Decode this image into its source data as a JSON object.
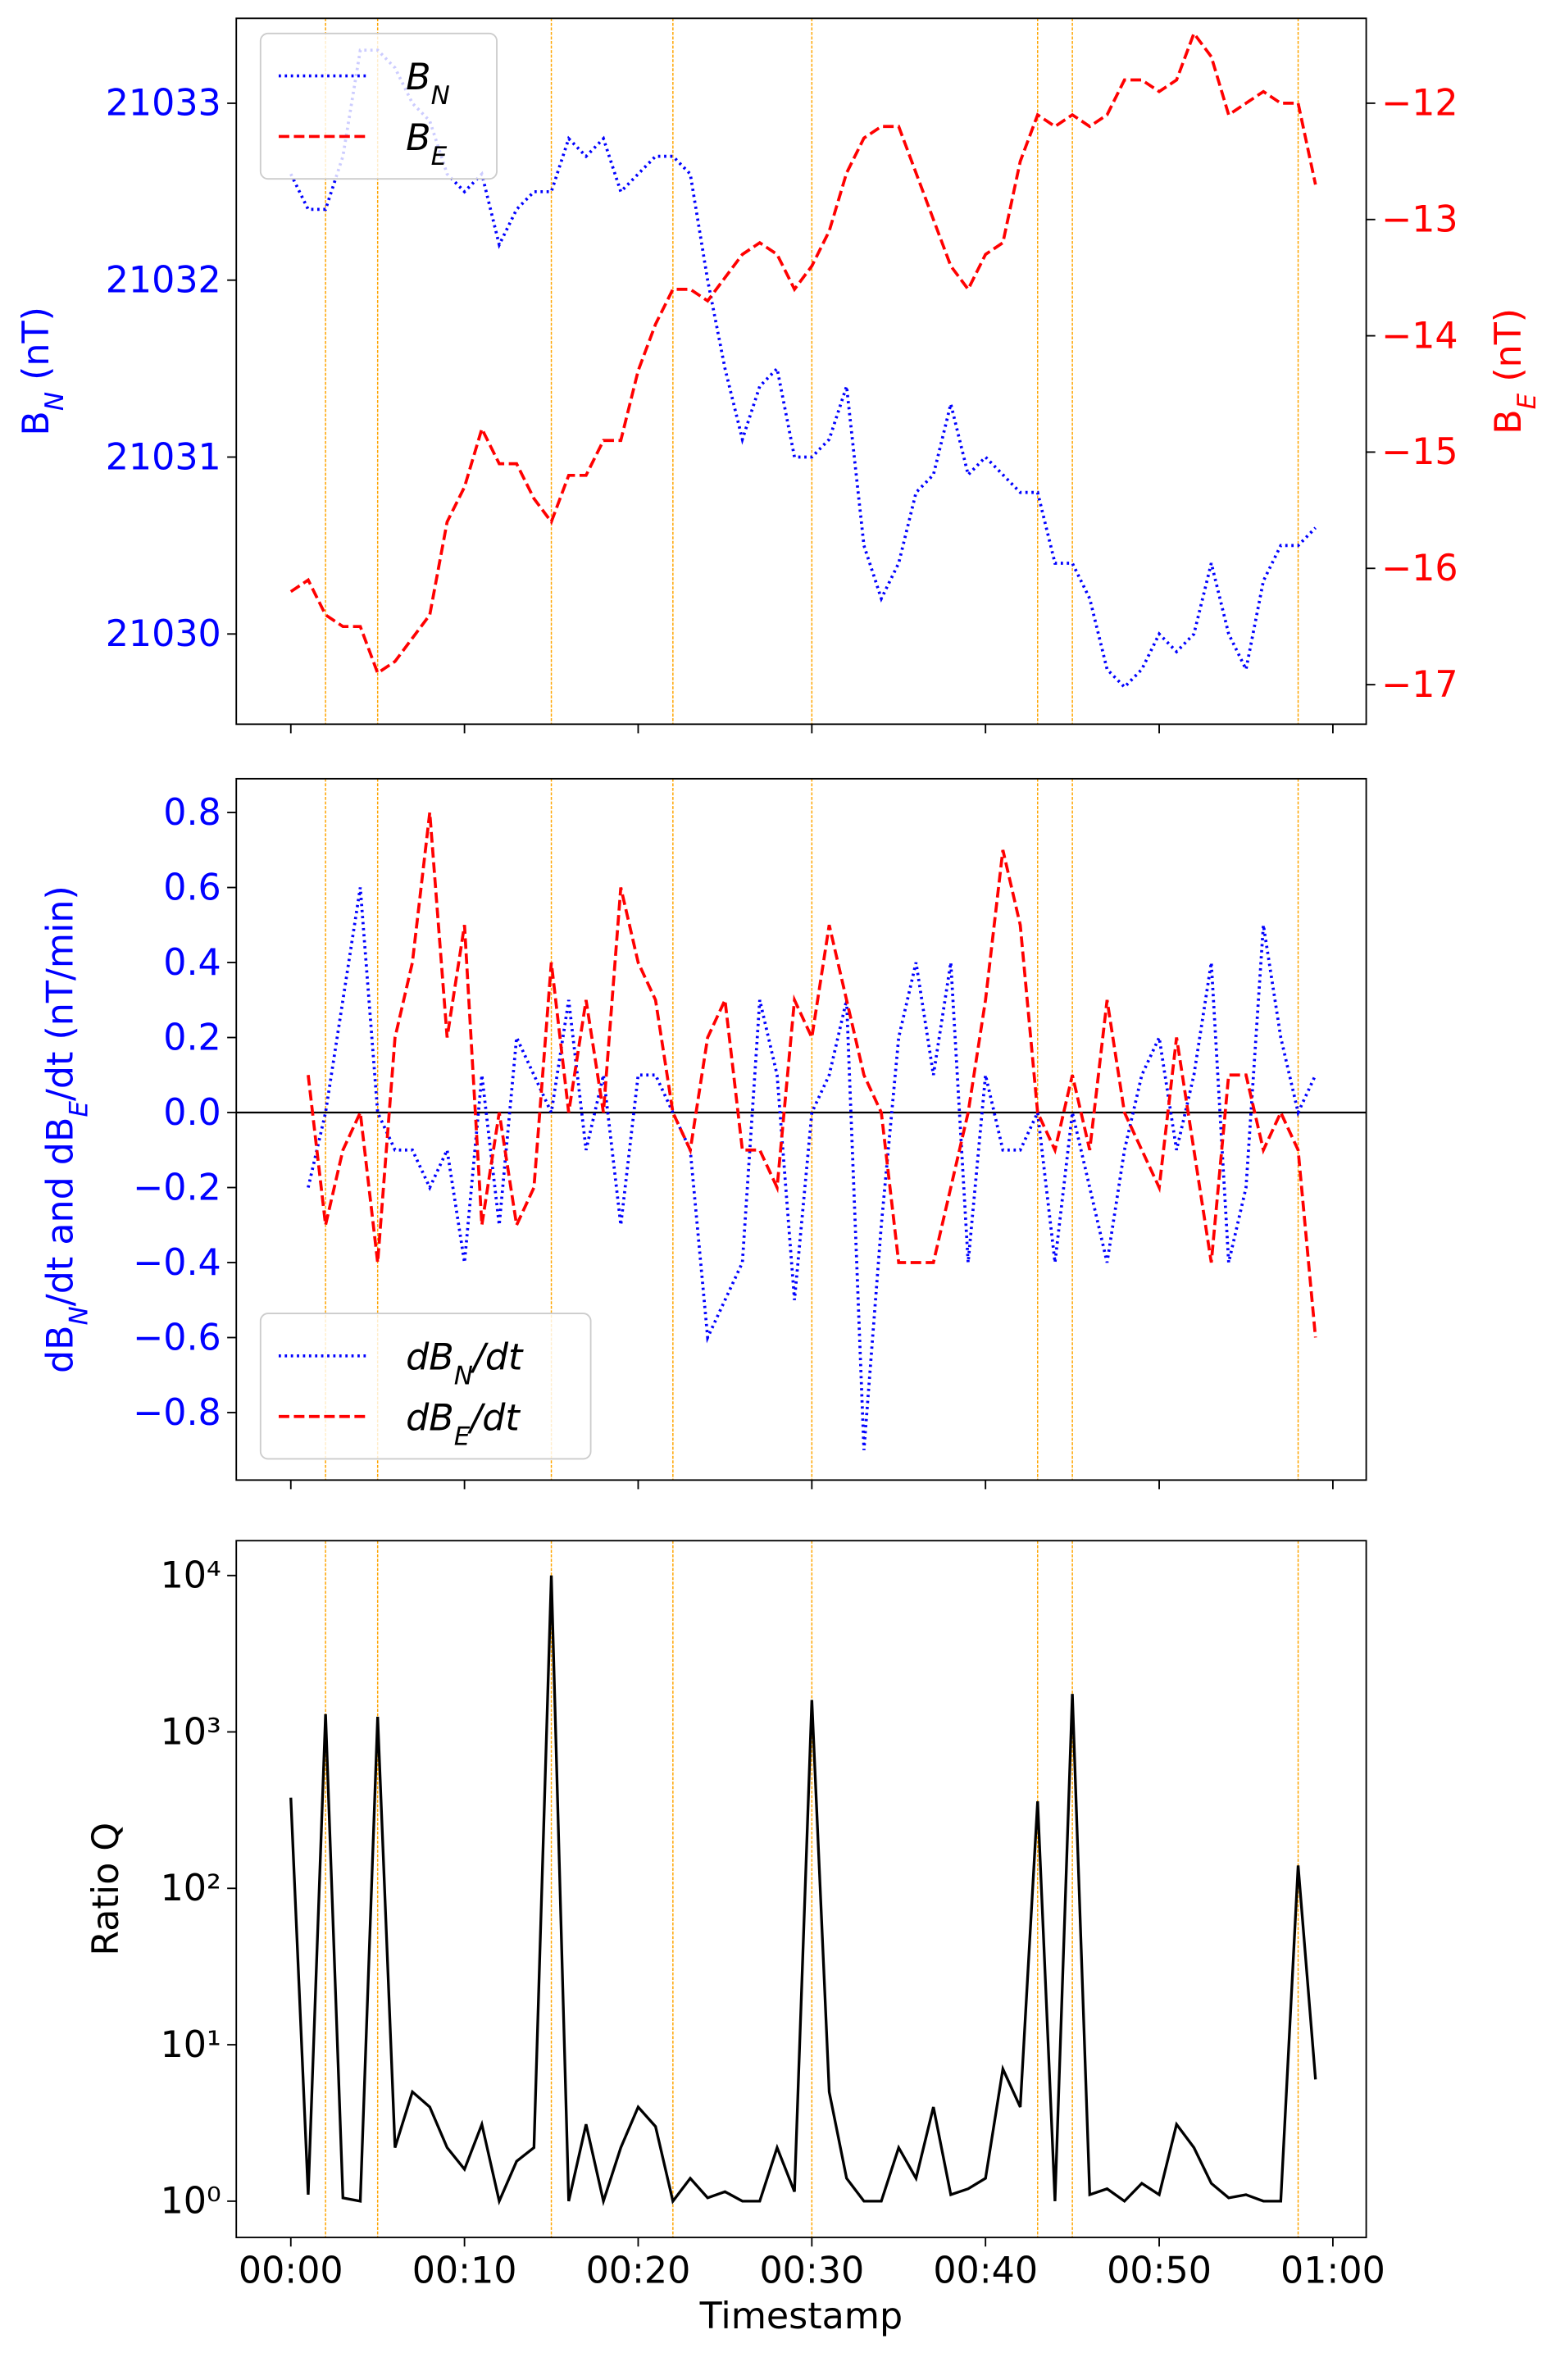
{
  "chart_data": [
    {
      "type": "line",
      "ylabel": "B_N (nT)",
      "y2label": "B_E (nT)",
      "x": [
        0,
        1,
        2,
        3,
        4,
        5,
        6,
        7,
        8,
        9,
        10,
        11,
        12,
        13,
        14,
        15,
        16,
        17,
        18,
        19,
        20,
        21,
        22,
        23,
        24,
        25,
        26,
        27,
        28,
        29,
        30,
        31,
        32,
        33,
        34,
        35,
        36,
        37,
        38,
        39,
        40,
        41,
        42,
        43,
        44,
        45,
        46,
        47,
        48,
        49,
        50,
        51,
        52,
        53,
        54,
        55,
        56,
        57,
        58,
        59
      ],
      "xlim": [
        -3.14,
        61.92
      ],
      "xticks": [
        0,
        10,
        20,
        30,
        40,
        50,
        60
      ],
      "ylim": [
        21029.49,
        21033.48
      ],
      "yticks": [
        21030,
        21031,
        21032,
        21033
      ],
      "ycolor": "blue",
      "y2lim": [
        -17.34,
        -11.27
      ],
      "y2ticks": [
        {
          "value": -17,
          "label": "−17"
        },
        {
          "value": -16,
          "label": "−16"
        },
        {
          "value": -15,
          "label": "−15"
        },
        {
          "value": -14,
          "label": "−14"
        },
        {
          "value": -13,
          "label": "−13"
        },
        {
          "value": -12,
          "label": "−12"
        }
      ],
      "y2color": "red",
      "vlines": [
        2,
        5,
        15,
        22,
        30,
        43,
        45,
        58
      ],
      "vline_color": "#ffa500",
      "legend": "upper left",
      "series": [
        {
          "name": "B_N",
          "color": "blue",
          "linestyle": "dotted",
          "axis": "y",
          "values": [
            21032.6,
            21032.4,
            21032.4,
            21032.7,
            21033.3,
            21033.3,
            21033.2,
            21033.0,
            21032.9,
            21032.6,
            21032.5,
            21032.6,
            21032.2,
            21032.4,
            21032.5,
            21032.5,
            21032.8,
            21032.7,
            21032.8,
            21032.5,
            21032.6,
            21032.7,
            21032.7,
            21032.6,
            21032.0,
            21031.5,
            21031.1,
            21031.4,
            21031.5,
            21031.0,
            21031.0,
            21031.1,
            21031.4,
            21030.5,
            21030.2,
            21030.4,
            21030.8,
            21030.9,
            21031.3,
            21030.9,
            21031.0,
            21030.9,
            21030.8,
            21030.8,
            21030.4,
            21030.4,
            21030.2,
            21029.8,
            21029.7,
            21029.8,
            21030.0,
            21029.9,
            21030.0,
            21030.4,
            21030.0,
            21029.8,
            21030.3,
            21030.5,
            21030.5,
            21030.6
          ]
        },
        {
          "name": "B_E",
          "color": "red",
          "linestyle": "dashed",
          "axis": "y2",
          "values": [
            -16.2,
            -16.1,
            -16.4,
            -16.5,
            -16.5,
            -16.9,
            -16.8,
            -16.6,
            -16.4,
            -15.6,
            -15.3,
            -14.8,
            -15.1,
            -15.1,
            -15.4,
            -15.6,
            -15.2,
            -15.2,
            -14.9,
            -14.9,
            -14.3,
            -13.9,
            -13.6,
            -13.6,
            -13.7,
            -13.5,
            -13.3,
            -13.2,
            -13.3,
            -13.6,
            -13.4,
            -13.1,
            -12.6,
            -12.3,
            -12.2,
            -12.2,
            -12.6,
            -13.0,
            -13.4,
            -13.6,
            -13.3,
            -13.2,
            -12.5,
            -12.1,
            -12.2,
            -12.1,
            -12.2,
            -12.1,
            -11.8,
            -11.8,
            -11.9,
            -11.8,
            -11.4,
            -11.6,
            -12.1,
            -12.0,
            -11.9,
            -12.0,
            -12.0,
            -12.7
          ]
        }
      ]
    },
    {
      "type": "line",
      "ylabel": "dB_N/dt and dB_E/dt (nT/min)",
      "x": [
        0,
        1,
        2,
        3,
        4,
        5,
        6,
        7,
        8,
        9,
        10,
        11,
        12,
        13,
        14,
        15,
        16,
        17,
        18,
        19,
        20,
        21,
        22,
        23,
        24,
        25,
        26,
        27,
        28,
        29,
        30,
        31,
        32,
        33,
        34,
        35,
        36,
        37,
        38,
        39,
        40,
        41,
        42,
        43,
        44,
        45,
        46,
        47,
        48,
        49,
        50,
        51,
        52,
        53,
        54,
        55,
        56,
        57,
        58,
        59
      ],
      "xlim": [
        -3.14,
        61.92
      ],
      "xticks": [
        0,
        10,
        20,
        30,
        40,
        50,
        60
      ],
      "ylim": [
        -0.98,
        0.89
      ],
      "yticks": [
        {
          "value": -0.8,
          "label": "−0.8"
        },
        {
          "value": -0.6,
          "label": "−0.6"
        },
        {
          "value": -0.4,
          "label": "−0.4"
        },
        {
          "value": -0.2,
          "label": "−0.2"
        },
        {
          "value": 0,
          "label": "0.0"
        },
        {
          "value": 0.2,
          "label": "0.2"
        },
        {
          "value": 0.4,
          "label": "0.4"
        },
        {
          "value": 0.6,
          "label": "0.6"
        },
        {
          "value": 0.8,
          "label": "0.8"
        }
      ],
      "ycolor": "blue",
      "hline": 0,
      "vlines": [
        2,
        5,
        15,
        22,
        30,
        43,
        45,
        58
      ],
      "vline_color": "#ffa500",
      "legend": "lower left",
      "series": [
        {
          "name": "dB_N/dt",
          "color": "blue",
          "linestyle": "dotted",
          "values": [
            null,
            -0.2,
            0.0,
            0.3,
            0.6,
            0.0,
            -0.1,
            -0.1,
            -0.2,
            -0.1,
            -0.4,
            0.1,
            -0.3,
            0.2,
            0.1,
            0.0,
            0.3,
            -0.1,
            0.1,
            -0.3,
            0.1,
            0.1,
            0.0,
            -0.1,
            -0.6,
            -0.5,
            -0.4,
            0.3,
            0.1,
            -0.5,
            0.0,
            0.1,
            0.3,
            -0.9,
            -0.3,
            0.2,
            0.4,
            0.1,
            0.4,
            -0.4,
            0.1,
            -0.1,
            -0.1,
            0.0,
            -0.4,
            0.0,
            -0.2,
            -0.4,
            -0.1,
            0.1,
            0.2,
            -0.1,
            0.1,
            0.4,
            -0.4,
            -0.2,
            0.5,
            0.2,
            0.0,
            0.1
          ]
        },
        {
          "name": "dB_E/dt",
          "color": "red",
          "linestyle": "dashed",
          "values": [
            null,
            0.1,
            -0.3,
            -0.1,
            0.0,
            -0.4,
            0.2,
            0.4,
            0.8,
            0.2,
            0.5,
            -0.3,
            0.0,
            -0.3,
            -0.2,
            0.4,
            0.0,
            0.3,
            0.0,
            0.6,
            0.4,
            0.3,
            0.0,
            -0.1,
            0.2,
            0.3,
            -0.1,
            -0.1,
            -0.2,
            0.3,
            0.2,
            0.5,
            0.3,
            0.1,
            0.0,
            -0.4,
            -0.4,
            -0.4,
            -0.2,
            0.0,
            0.3,
            0.7,
            0.5,
            0.0,
            -0.1,
            0.1,
            -0.1,
            0.3,
            0.0,
            -0.1,
            -0.2,
            0.2,
            -0.1,
            -0.4,
            0.1,
            0.1,
            -0.1,
            0.0,
            -0.1,
            -0.6
          ]
        }
      ]
    },
    {
      "type": "line",
      "ylabel": "Ratio Q",
      "xlabel": "Timestamp",
      "log_scale": true,
      "x": [
        0,
        1,
        2,
        3,
        4,
        5,
        6,
        7,
        8,
        9,
        10,
        11,
        12,
        13,
        14,
        15,
        16,
        17,
        18,
        19,
        20,
        21,
        22,
        23,
        24,
        25,
        26,
        27,
        28,
        29,
        30,
        31,
        32,
        33,
        34,
        35,
        36,
        37,
        38,
        39,
        40,
        41,
        42,
        43,
        44,
        45,
        46,
        47,
        48,
        49,
        50,
        51,
        52,
        53,
        54,
        55,
        56,
        57,
        58,
        59
      ],
      "xlim": [
        -3.14,
        61.92
      ],
      "xticks": [
        {
          "value": 0,
          "label": "00:00"
        },
        {
          "value": 10,
          "label": "00:10"
        },
        {
          "value": 20,
          "label": "00:20"
        },
        {
          "value": 30,
          "label": "00:30"
        },
        {
          "value": 40,
          "label": "00:40"
        },
        {
          "value": 50,
          "label": "00:50"
        },
        {
          "value": 60,
          "label": "01:00"
        }
      ],
      "ylim": [
        0.586,
        16700
      ],
      "yticks": [
        {
          "value": 1,
          "label": "10⁰"
        },
        {
          "value": 10,
          "label": "10¹"
        },
        {
          "value": 100,
          "label": "10²"
        },
        {
          "value": 1000,
          "label": "10³"
        },
        {
          "value": 10000,
          "label": "10⁴"
        }
      ],
      "ycolor": "black",
      "vlines": [
        2,
        5,
        15,
        22,
        30,
        43,
        45,
        58
      ],
      "vline_color": "#ffa500",
      "series": [
        {
          "color": "black",
          "linestyle": "solid",
          "values": [
            380,
            1.1,
            1300,
            1.05,
            1.0,
            1250,
            2.2,
            5,
            4,
            2.2,
            1.6,
            3.1,
            1.0,
            1.8,
            2.2,
            10000,
            1.0,
            3.1,
            1.0,
            2.2,
            4,
            3,
            1.0,
            1.4,
            1.05,
            1.15,
            1.0,
            1.0,
            2.2,
            1.15,
            1600,
            5,
            1.4,
            1.0,
            1.0,
            2.2,
            1.4,
            4,
            1.1,
            1.2,
            1.4,
            7,
            4,
            360,
            1.0,
            1750,
            1.1,
            1.2,
            1.0,
            1.3,
            1.1,
            3.1,
            2.2,
            1.3,
            1.05,
            1.1,
            1.0,
            1.0,
            140,
            6
          ]
        }
      ]
    }
  ]
}
